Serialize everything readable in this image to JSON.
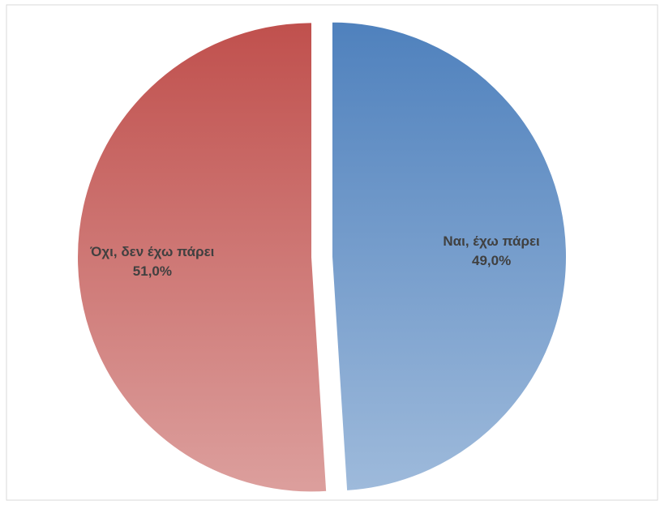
{
  "chart_data": {
    "type": "pie",
    "categories": [
      "Ναι, έχω πάρει",
      "Όχι, δεν έχω πάρει"
    ],
    "values": [
      49.0,
      51.0
    ],
    "value_labels": [
      "49,0%",
      "51,0%"
    ],
    "colors": [
      "#4f81bd",
      "#c0504d"
    ]
  }
}
